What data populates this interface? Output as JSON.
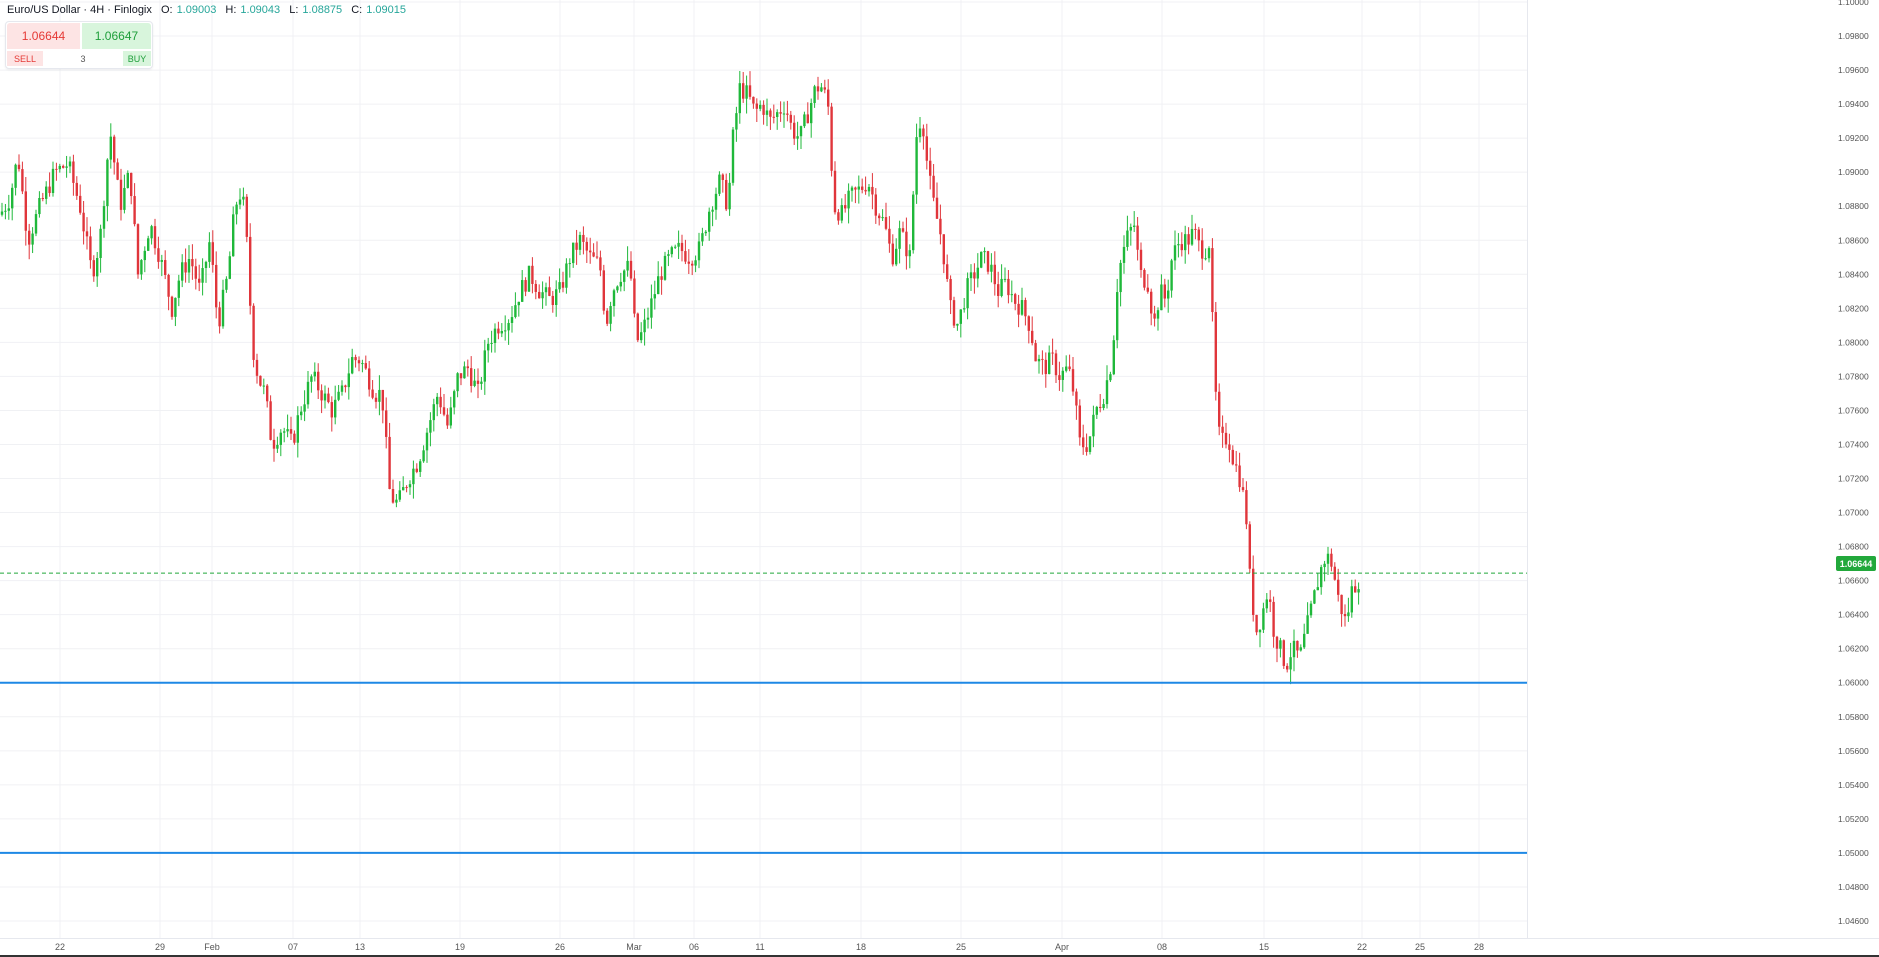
{
  "header": {
    "symbol": "Euro/US Dollar · 4H · Finlogix",
    "open_label": "O:",
    "open_value": "1.09003",
    "high_label": "H:",
    "high_value": "1.09043",
    "low_label": "L:",
    "low_value": "1.08875",
    "close_label": "C:",
    "close_value": "1.09015"
  },
  "trade": {
    "sell_price": "1.06644",
    "buy_price": "1.06647",
    "sell_label": "SELL",
    "quantity": "3",
    "buy_label": "BUY"
  },
  "current_price_tag": "1.06644",
  "colors": {
    "up": "#1fb83a",
    "down": "#e0353b",
    "horizontal_lines": "#1e88e5",
    "current_price_line": "#22a83b"
  },
  "chart_data": {
    "type": "candlestick",
    "timeframe": "4H",
    "y_ticks": [
      "1.10000",
      "1.09800",
      "1.09600",
      "1.09400",
      "1.09200",
      "1.09000",
      "1.08800",
      "1.08600",
      "1.08400",
      "1.08200",
      "1.08000",
      "1.07800",
      "1.07600",
      "1.07400",
      "1.07200",
      "1.07000",
      "1.06800",
      "1.06600",
      "1.06400",
      "1.06200",
      "1.06000",
      "1.05800",
      "1.05600",
      "1.05400",
      "1.05200",
      "1.05000",
      "1.04800",
      "1.04600"
    ],
    "x_ticks": [
      "22",
      "29",
      "Feb",
      "07",
      "13",
      "19",
      "26",
      "Mar",
      "06",
      "11",
      "18",
      "25",
      "Apr",
      "08",
      "15",
      "22",
      "25",
      "28"
    ],
    "horizontal_lines": [
      1.06,
      1.05
    ],
    "current_price": 1.06644,
    "ylim": [
      1.0455,
      1.1
    ],
    "path": [
      [
        0,
        1.0875
      ],
      [
        10,
        1.0885
      ],
      [
        18,
        1.091
      ],
      [
        28,
        1.086
      ],
      [
        40,
        1.088
      ],
      [
        55,
        1.09
      ],
      [
        68,
        1.0905
      ],
      [
        80,
        1.088
      ],
      [
        92,
        1.084
      ],
      [
        100,
        1.086
      ],
      [
        110,
        1.0925
      ],
      [
        120,
        1.088
      ],
      [
        130,
        1.09
      ],
      [
        138,
        1.084
      ],
      [
        150,
        1.087
      ],
      [
        160,
        1.085
      ],
      [
        172,
        1.082
      ],
      [
        180,
        1.084
      ],
      [
        190,
        1.085
      ],
      [
        200,
        1.083
      ],
      [
        210,
        1.086
      ],
      [
        218,
        1.081
      ],
      [
        228,
        1.084
      ],
      [
        235,
        1.088
      ],
      [
        242,
        1.089
      ],
      [
        248,
        1.085
      ],
      [
        252,
        1.08
      ],
      [
        258,
        1.078
      ],
      [
        265,
        1.077
      ],
      [
        272,
        1.074
      ],
      [
        282,
        1.075
      ],
      [
        292,
        1.074
      ],
      [
        300,
        1.076
      ],
      [
        312,
        1.078
      ],
      [
        322,
        1.077
      ],
      [
        332,
        1.076
      ],
      [
        342,
        1.077
      ],
      [
        352,
        1.079
      ],
      [
        360,
        1.079
      ],
      [
        368,
        1.078
      ],
      [
        375,
        1.077
      ],
      [
        382,
        1.077
      ],
      [
        390,
        1.071
      ],
      [
        398,
        1.0705
      ],
      [
        408,
        1.072
      ],
      [
        418,
        1.073
      ],
      [
        428,
        1.075
      ],
      [
        438,
        1.077
      ],
      [
        448,
        1.075
      ],
      [
        458,
        1.078
      ],
      [
        468,
        1.0785
      ],
      [
        478,
        1.077
      ],
      [
        488,
        1.08
      ],
      [
        498,
        1.081
      ],
      [
        510,
        1.0815
      ],
      [
        520,
        1.083
      ],
      [
        530,
        1.084
      ],
      [
        540,
        1.083
      ],
      [
        550,
        1.0825
      ],
      [
        560,
        1.083
      ],
      [
        570,
        1.085
      ],
      [
        580,
        1.086
      ],
      [
        590,
        1.085
      ],
      [
        600,
        1.0845
      ],
      [
        606,
        1.081
      ],
      [
        612,
        1.083
      ],
      [
        620,
        1.084
      ],
      [
        630,
        1.0845
      ],
      [
        636,
        1.08
      ],
      [
        642,
        1.0805
      ],
      [
        650,
        1.082
      ],
      [
        660,
        1.084
      ],
      [
        670,
        1.085
      ],
      [
        680,
        1.0855
      ],
      [
        690,
        1.085
      ],
      [
        700,
        1.0855
      ],
      [
        710,
        1.088
      ],
      [
        720,
        1.0895
      ],
      [
        728,
        1.088
      ],
      [
        733,
        1.092
      ],
      [
        740,
        1.095
      ],
      [
        748,
        1.0945
      ],
      [
        755,
        1.0935
      ],
      [
        762,
        1.094
      ],
      [
        770,
        1.093
      ],
      [
        778,
        1.0935
      ],
      [
        785,
        1.094
      ],
      [
        792,
        1.0925
      ],
      [
        800,
        1.092
      ],
      [
        808,
        1.0935
      ],
      [
        816,
        1.095
      ],
      [
        822,
        1.095
      ],
      [
        828,
        1.094
      ],
      [
        834,
        1.088
      ],
      [
        842,
        1.0875
      ],
      [
        850,
        1.0885
      ],
      [
        860,
        1.089
      ],
      [
        868,
        1.0895
      ],
      [
        876,
        1.088
      ],
      [
        884,
        1.087
      ],
      [
        892,
        1.085
      ],
      [
        900,
        1.0865
      ],
      [
        910,
        1.085
      ],
      [
        916,
        1.092
      ],
      [
        922,
        1.0935
      ],
      [
        928,
        1.09
      ],
      [
        934,
        1.088
      ],
      [
        942,
        1.086
      ],
      [
        950,
        1.082
      ],
      [
        958,
        1.081
      ],
      [
        966,
        1.083
      ],
      [
        974,
        1.084
      ],
      [
        982,
        1.085
      ],
      [
        990,
        1.0845
      ],
      [
        998,
        1.083
      ],
      [
        1006,
        1.0835
      ],
      [
        1014,
        1.0825
      ],
      [
        1022,
        1.082
      ],
      [
        1030,
        1.081
      ],
      [
        1036,
        1.079
      ],
      [
        1044,
        1.0785
      ],
      [
        1052,
        1.079
      ],
      [
        1060,
        1.078
      ],
      [
        1068,
        1.0785
      ],
      [
        1074,
        1.077
      ],
      [
        1080,
        1.074
      ],
      [
        1088,
        1.074
      ],
      [
        1096,
        1.076
      ],
      [
        1104,
        1.077
      ],
      [
        1112,
        1.079
      ],
      [
        1118,
        1.084
      ],
      [
        1126,
        1.086
      ],
      [
        1134,
        1.087
      ],
      [
        1140,
        1.084
      ],
      [
        1148,
        1.0835
      ],
      [
        1154,
        1.081
      ],
      [
        1160,
        1.083
      ],
      [
        1166,
        1.0825
      ],
      [
        1172,
        1.085
      ],
      [
        1180,
        1.086
      ],
      [
        1188,
        1.086
      ],
      [
        1194,
        1.0865
      ],
      [
        1200,
        1.0855
      ],
      [
        1206,
        1.0855
      ],
      [
        1210,
        1.086
      ],
      [
        1214,
        1.078
      ],
      [
        1220,
        1.074
      ],
      [
        1228,
        1.0745
      ],
      [
        1234,
        1.073
      ],
      [
        1240,
        1.072
      ],
      [
        1246,
        1.07
      ],
      [
        1250,
        1.066
      ],
      [
        1256,
        1.063
      ],
      [
        1262,
        1.064
      ],
      [
        1268,
        1.0655
      ],
      [
        1274,
        1.063
      ],
      [
        1280,
        1.062
      ],
      [
        1286,
        1.061
      ],
      [
        1292,
        1.062
      ],
      [
        1300,
        1.0615
      ],
      [
        1308,
        1.0635
      ],
      [
        1314,
        1.065
      ],
      [
        1320,
        1.0665
      ],
      [
        1326,
        1.0675
      ],
      [
        1332,
        1.067
      ],
      [
        1338,
        1.065
      ],
      [
        1346,
        1.0635
      ],
      [
        1352,
        1.0655
      ],
      [
        1358,
        1.066
      ],
      [
        1362,
        1.06644
      ]
    ]
  }
}
